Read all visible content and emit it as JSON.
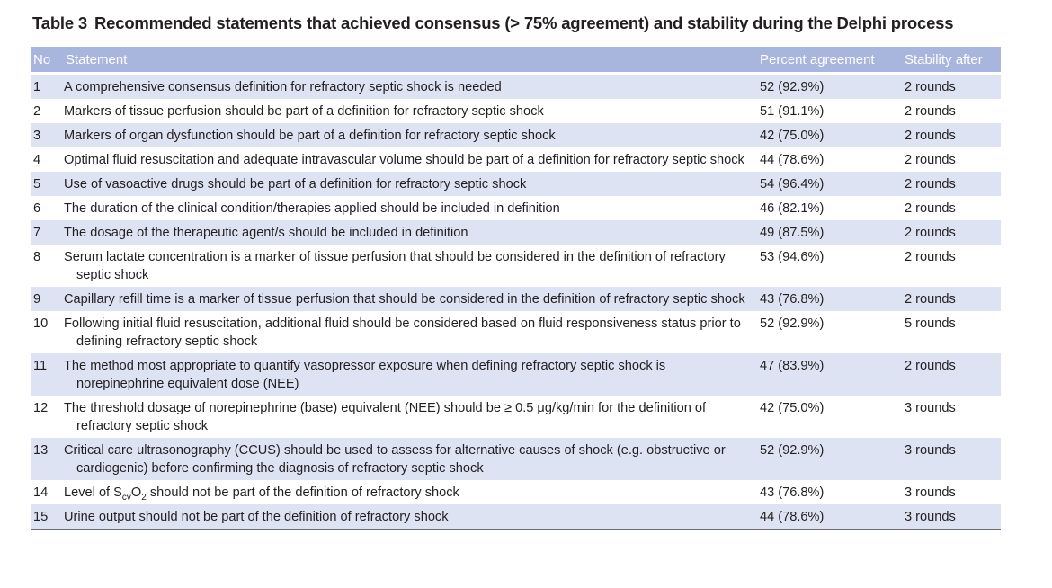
{
  "title": {
    "label": "Table 3",
    "text": "Recommended statements that achieved consensus (> 75% agreement) and stability during the Delphi process"
  },
  "table": {
    "columns": [
      "No",
      "Statement",
      "Percent agreement",
      "Stability after"
    ],
    "rows": [
      {
        "no": "1",
        "statement": "A comprehensive consensus definition for refractory septic shock is needed",
        "percent": "52 (92.9%)",
        "stability": "2 rounds"
      },
      {
        "no": "2",
        "statement": "Markers of tissue perfusion should be part of a definition for refractory septic shock",
        "percent": "51 (91.1%)",
        "stability": "2 rounds"
      },
      {
        "no": "3",
        "statement": "Markers of organ dysfunction should be part of a definition for refractory septic shock",
        "percent": "42 (75.0%)",
        "stability": "2 rounds"
      },
      {
        "no": "4",
        "statement": "Optimal fluid resuscitation and adequate intravascular volume should be part of a definition for refractory septic shock",
        "percent": "44 (78.6%)",
        "stability": "2 rounds"
      },
      {
        "no": "5",
        "statement": "Use of vasoactive drugs should be part of a definition for refractory septic shock",
        "percent": "54 (96.4%)",
        "stability": "2 rounds"
      },
      {
        "no": "6",
        "statement": "The duration of the clinical condition/therapies applied should be included in definition",
        "percent": "46 (82.1%)",
        "stability": "2 rounds"
      },
      {
        "no": "7",
        "statement": "The dosage of the therapeutic agent/s should be included in definition",
        "percent": "49 (87.5%)",
        "stability": "2 rounds"
      },
      {
        "no": "8",
        "statement": "Serum lactate concentration is a marker of tissue perfusion that should be considered in the definition of refractory septic shock",
        "percent": "53 (94.6%)",
        "stability": "2 rounds"
      },
      {
        "no": "9",
        "statement": "Capillary refill time is a marker of tissue perfusion that should be considered in the definition of refractory septic shock",
        "percent": "43 (76.8%)",
        "stability": "2 rounds"
      },
      {
        "no": "10",
        "statement": "Following initial fluid resuscitation, additional fluid should be considered based on fluid responsiveness status prior to defining refractory septic shock",
        "percent": "52 (92.9%)",
        "stability": "5 rounds"
      },
      {
        "no": "11",
        "statement": "The method most appropriate to quantify vasopressor exposure when defining refractory septic shock is norepinephrine equivalent dose (NEE)",
        "percent": "47 (83.9%)",
        "stability": "2 rounds"
      },
      {
        "no": "12",
        "statement": "The threshold dosage of norepinephrine (base) equivalent (NEE) should be ≥ 0.5 μg/kg/min for the definition of refractory septic shock",
        "percent": "42 (75.0%)",
        "stability": "3 rounds"
      },
      {
        "no": "13",
        "statement": "Critical care ultrasonography (CCUS) should be used to assess for alternative causes of shock (e.g. obstructive or cardiogenic) before confirming the diagnosis of refractory septic shock",
        "percent": "52 (92.9%)",
        "stability": "3 rounds"
      },
      {
        "no": "14",
        "statement": [
          {
            "text": "Level of S"
          },
          {
            "text": "cv",
            "sub": true
          },
          {
            "text": "O"
          },
          {
            "text": "2",
            "sub": true
          },
          {
            "text": " should not be part of the definition of refractory shock"
          }
        ],
        "percent": "43 (76.8%)",
        "stability": "3 rounds"
      },
      {
        "no": "15",
        "statement": "Urine output should not be part of the definition of refractory shock",
        "percent": "44 (78.6%)",
        "stability": "3 rounds"
      }
    ]
  }
}
